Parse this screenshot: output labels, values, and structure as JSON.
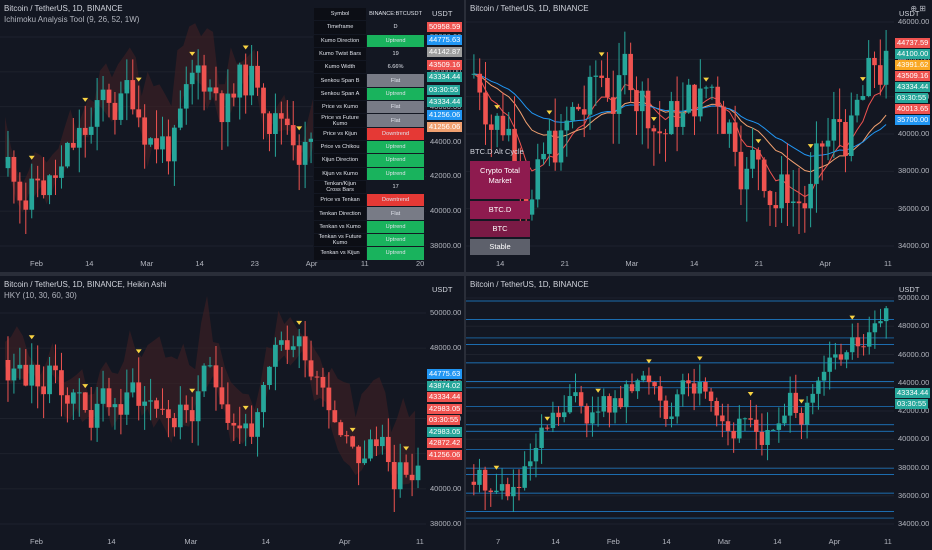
{
  "colors": {
    "up": "#26a69a",
    "down": "#ef5350",
    "bg": "#131722",
    "grid": "#2a2e39",
    "cloudRed": "#5a2a2e",
    "cloudGreen": "#1f4a3a"
  },
  "top_right_icons": "⊕ ⊞",
  "panes": [
    {
      "id": "ichimoku",
      "title": "Bitcoin / TetherUS, 1D, BINANCE",
      "subtitle": "Ichimoku Analysis Tool (9, 26, 52, 1W)",
      "currency": "USDT",
      "y_labels": [
        "50000.00",
        "48000.00",
        "46000.00",
        "44000.00",
        "42000.00",
        "40000.00",
        "38000.00"
      ],
      "x_labels": [
        "Feb",
        "14",
        "Mar",
        "14",
        "23",
        "Apr",
        "11",
        "20"
      ],
      "price_tags": [
        {
          "text": "50958.59",
          "color": "#ef5350"
        },
        {
          "text": "44775.63",
          "color": "#2196f3"
        },
        {
          "text": "44142.87",
          "color": "#9e9e9e"
        },
        {
          "text": "43509.16",
          "color": "#ef5350"
        },
        {
          "text": "43334.44",
          "color": "#26a69a"
        },
        {
          "text": "03:30:55",
          "color": "#26a69a"
        },
        {
          "text": "43334.44",
          "color": "#26a69a"
        },
        {
          "text": "41256.06",
          "color": "#2196f3"
        },
        {
          "text": "41256.06",
          "color": "#f0a070"
        }
      ],
      "candles": {
        "seed": 11,
        "count": 70,
        "start": 41000
      },
      "table": [
        {
          "k": "Symbol",
          "v": "BINANCE:BTCUSDT",
          "c": "#131722"
        },
        {
          "k": "Timeframe",
          "v": "D",
          "c": "#131722"
        },
        {
          "k": "Kumo Direction",
          "v": "Uptrend",
          "c": "#19b35d"
        },
        {
          "k": "Kumo Twist Bars",
          "v": "19",
          "c": "#131722"
        },
        {
          "k": "Kumo Width",
          "v": "6.66%",
          "c": "#131722"
        },
        {
          "k": "Senkou Span B",
          "v": "Flat",
          "c": "#787b86"
        },
        {
          "k": "Senkou Span A",
          "v": "Uptrend",
          "c": "#19b35d"
        },
        {
          "k": "Price vs Kumo",
          "v": "Flat",
          "c": "#787b86"
        },
        {
          "k": "Price vs Future Kumo",
          "v": "Flat",
          "c": "#787b86"
        },
        {
          "k": "Price vs Kijun",
          "v": "Downtrend",
          "c": "#e53935"
        },
        {
          "k": "Price vs Chikou",
          "v": "Uptrend",
          "c": "#19b35d"
        },
        {
          "k": "Kijun Direction",
          "v": "Uptrend",
          "c": "#19b35d"
        },
        {
          "k": "Kijun vs Kumo",
          "v": "Uptrend",
          "c": "#19b35d"
        },
        {
          "k": "Tenkan/Kijun Cross Bars",
          "v": "17",
          "c": "#131722"
        },
        {
          "k": "Price vs Tenkan",
          "v": "Downtrend",
          "c": "#e53935"
        },
        {
          "k": "Tenkan Direction",
          "v": "Flat",
          "c": "#787b86"
        },
        {
          "k": "Tenkan vs Kumo",
          "v": "Uptrend",
          "c": "#19b35d"
        },
        {
          "k": "Tenkan vs Future Kumo",
          "v": "Uptrend",
          "c": "#19b35d"
        },
        {
          "k": "Tenkan vs Kijun",
          "v": "Uptrend",
          "c": "#19b35d"
        }
      ]
    },
    {
      "id": "altcycle",
      "title": "Bitcoin / TetherUS, 1D, BINANCE",
      "currency": "USDT",
      "y_labels": [
        "46000.00",
        "44000.00",
        "42000.00",
        "40000.00",
        "38000.00",
        "36000.00",
        "34000.00"
      ],
      "x_labels": [
        "14",
        "21",
        "Mar",
        "14",
        "21",
        "Apr",
        "11"
      ],
      "price_tags": [
        {
          "text": "44737.59",
          "color": "#ef5350"
        },
        {
          "text": "44100.00",
          "color": "#26a69a"
        },
        {
          "text": "43991.62",
          "color": "#f9a825"
        },
        {
          "text": "43509.16",
          "color": "#ef5350"
        },
        {
          "text": "43334.44",
          "color": "#26a69a"
        },
        {
          "text": "03:30:55",
          "color": "#26a69a"
        },
        {
          "text": "40013.65",
          "color": "#ef5350"
        },
        {
          "text": "35700.00",
          "color": "#2196f3"
        }
      ],
      "candles": {
        "seed": 7,
        "count": 72,
        "start": 38500
      },
      "legend_title": "BTC.D Alt Cycle",
      "legend": [
        {
          "label": "Crypto Total Market",
          "color": "#8e1b4f"
        },
        {
          "label": "BTC.D",
          "color": "#8e1b4f"
        },
        {
          "label": "BTC",
          "color": "#7a1a45"
        },
        {
          "label": "Stable",
          "color": "#5d606b"
        }
      ]
    },
    {
      "id": "heikin",
      "title": "Bitcoin / TetherUS, 1D, BINANCE, Heikin Ashi",
      "subtitle": "HKY (10, 30, 60, 30)",
      "currency": "USDT",
      "y_labels": [
        "50000.00",
        "48000.00",
        "46000.00",
        "44000.00",
        "42000.00",
        "40000.00",
        "38000.00"
      ],
      "x_labels": [
        "Feb",
        "14",
        "Mar",
        "14",
        "Apr",
        "11"
      ],
      "price_tags": [
        {
          "text": "44775.63",
          "color": "#2196f3"
        },
        {
          "text": "43874.02",
          "color": "#26a69a"
        },
        {
          "text": "43334.44",
          "color": "#ef5350"
        },
        {
          "text": "42983.05",
          "color": "#ef5350"
        },
        {
          "text": "03:30:55",
          "color": "#ef5350"
        },
        {
          "text": "42983.05",
          "color": "#26a69a"
        },
        {
          "text": "42872.42",
          "color": "#ef5350"
        },
        {
          "text": "41256.06",
          "color": "#ef5350"
        }
      ],
      "candles": {
        "seed": 23,
        "count": 70,
        "start": 40500
      }
    },
    {
      "id": "levels",
      "title": "Bitcoin / TetherUS, 1D, BINANCE",
      "currency": "USDT",
      "y_labels": [
        "50000.00",
        "48000.00",
        "46000.00",
        "44000.00",
        "42000.00",
        "40000.00",
        "38000.00",
        "36000.00",
        "34000.00"
      ],
      "x_labels": [
        "7",
        "14",
        "Feb",
        "14",
        "Mar",
        "14",
        "Apr",
        "11"
      ],
      "price_tags": [
        {
          "text": "43334.44",
          "color": "#26a69a"
        },
        {
          "text": "03:30:55",
          "color": "#26a69a"
        }
      ],
      "candles": {
        "seed": 5,
        "count": 74,
        "start": 39000
      }
    }
  ]
}
